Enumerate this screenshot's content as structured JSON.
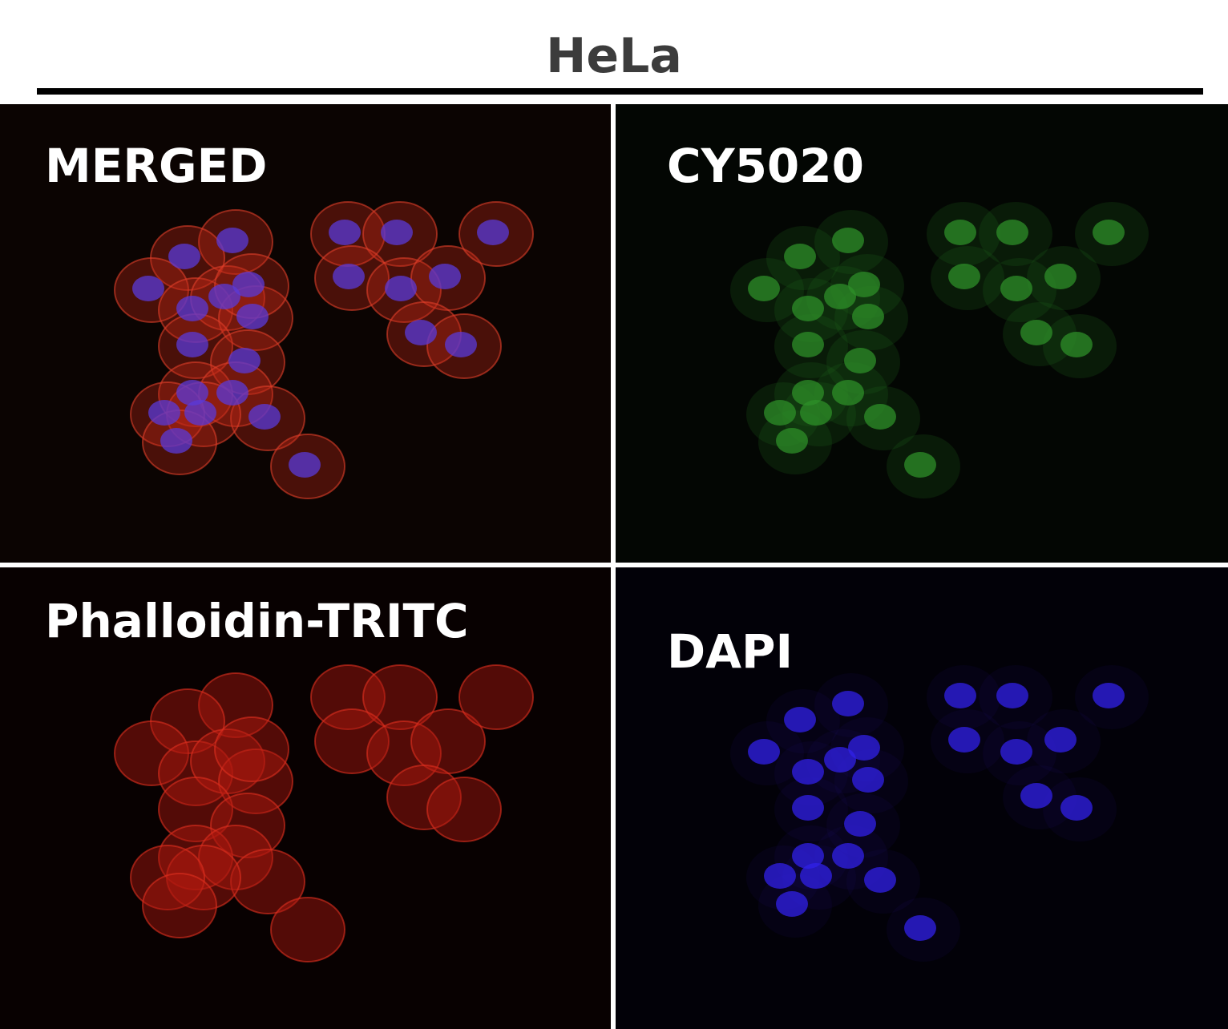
{
  "figure": {
    "title": "HeLa",
    "panels": [
      {
        "label": "MERGED",
        "channel_color": "#c0304a"
      },
      {
        "label": "CY5020",
        "channel_color": "#2f8a2a"
      },
      {
        "label": "Phalloidin-TRITC",
        "channel_color": "#b8201a"
      },
      {
        "label": "DAPI",
        "channel_color": "#3a2ae0"
      }
    ]
  }
}
